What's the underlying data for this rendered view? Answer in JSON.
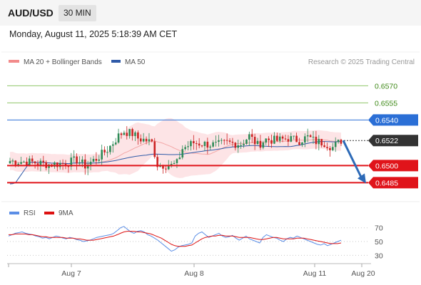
{
  "header": {
    "symbol": "AUD/USD",
    "timeframe": "30 MIN"
  },
  "timestamp": "Monday, August 11, 2025 5:18:39 AM CET",
  "legend": {
    "items": [
      {
        "label": "MA 20 + Bollinger Bands",
        "color": "#f28b8b"
      },
      {
        "label": "MA 50",
        "color": "#2f5aa8"
      }
    ],
    "copyright": "Research © 2025 Trading Central"
  },
  "colors": {
    "up_candle": "#2e8b57",
    "down_candle": "#cc2222",
    "bollinger_fill": "#fde4e6",
    "ma20": "#f3a7a7",
    "ma50": "#2f5aa8",
    "resistance": "#8fc66a",
    "pivot": "#2b6fd6",
    "support": "#e0141a",
    "current": "#333333",
    "arrow": "#2d6ab7",
    "rsi": "#5b8ee6",
    "rsi_ma": "#dd1111"
  },
  "chart_data": [
    {
      "type": "candlestick",
      "name": "AUD/USD price",
      "ylim": [
        0.6474,
        0.6584
      ],
      "x_tick_labels": [
        "Aug 7",
        "Aug 8",
        "Aug 11",
        "Aug 20"
      ],
      "levels": [
        {
          "value": 0.657,
          "label": "0.6570",
          "kind": "resistance"
        },
        {
          "value": 0.6555,
          "label": "0.6555",
          "kind": "resistance"
        },
        {
          "value": 0.654,
          "label": "0.6540",
          "kind": "pivot"
        },
        {
          "value": 0.6522,
          "label": "0.6522",
          "kind": "current"
        },
        {
          "value": 0.65,
          "label": "0.6500",
          "kind": "support"
        },
        {
          "value": 0.6485,
          "label": "0.6485",
          "kind": "support"
        }
      ],
      "ma_period_labels": [
        "MA 20 + Bollinger Bands",
        "MA 50"
      ],
      "forecast": {
        "from": 0.6522,
        "to": 0.6485,
        "direction": "down"
      }
    },
    {
      "type": "line",
      "name": "RSI",
      "series": [
        {
          "name": "RSI"
        },
        {
          "name": "9MA"
        }
      ],
      "y_ticks": [
        70,
        50,
        30
      ],
      "ylim": [
        20,
        78
      ],
      "rsi": [
        58,
        60,
        62,
        63,
        64,
        62,
        61,
        60,
        58,
        57,
        55,
        56,
        54,
        56,
        58,
        57,
        55,
        54,
        56,
        55,
        53,
        52,
        50,
        51,
        52,
        54,
        56,
        57,
        58,
        59,
        60,
        62,
        66,
        70,
        72,
        68,
        64,
        62,
        65,
        66,
        64,
        60,
        58,
        55,
        52,
        48,
        44,
        40,
        36,
        38,
        42,
        44,
        45,
        46,
        48,
        58,
        62,
        64,
        60,
        56,
        58,
        60,
        62,
        58,
        56,
        57,
        59,
        55,
        52,
        55,
        58,
        54,
        52,
        50,
        48,
        56,
        60,
        58,
        56,
        55,
        52,
        50,
        54,
        56,
        55,
        58,
        56,
        54,
        52,
        50,
        48,
        46,
        45,
        47,
        44,
        46,
        48,
        50,
        52
      ],
      "rsi_ma": [
        60,
        60,
        61,
        61,
        61,
        61,
        60,
        60,
        59,
        58,
        57,
        57,
        56,
        56,
        56,
        56,
        56,
        55,
        55,
        55,
        54,
        54,
        53,
        52,
        52,
        52,
        53,
        54,
        55,
        56,
        57,
        58,
        60,
        62,
        64,
        65,
        65,
        65,
        64,
        64,
        63,
        62,
        61,
        59,
        57,
        55,
        52,
        49,
        46,
        44,
        43,
        43,
        43,
        44,
        45,
        48,
        51,
        54,
        56,
        57,
        58,
        58,
        59,
        59,
        58,
        58,
        58,
        57,
        56,
        56,
        56,
        56,
        55,
        54,
        53,
        53,
        54,
        55,
        56,
        56,
        55,
        54,
        54,
        54,
        54,
        55,
        55,
        55,
        54,
        53,
        52,
        51,
        50,
        49,
        48,
        47,
        47,
        47,
        48
      ]
    }
  ]
}
